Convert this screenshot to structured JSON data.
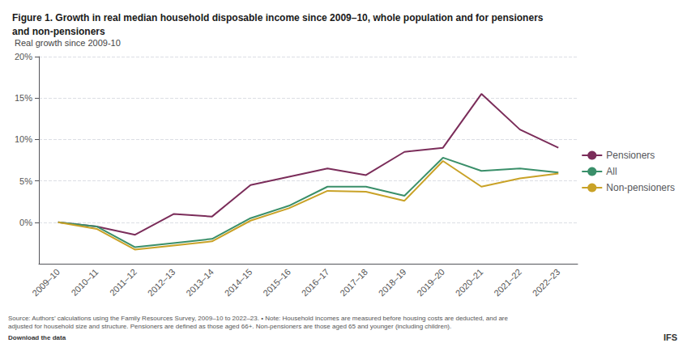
{
  "chart_data": {
    "type": "line",
    "title": "Figure 1. Growth in real median household disposable income since 2009–10, whole population and for pensioners\nand non-pensioners",
    "ylabel": "Real growth since 2009-10",
    "categories": [
      "2009–10",
      "2010–11",
      "2011–12",
      "2012–13",
      "2013–14",
      "2014–15",
      "2015–16",
      "2016–17",
      "2017–18",
      "2018–19",
      "2019–20",
      "2020–21",
      "2021–22",
      "2022–23"
    ],
    "series": [
      {
        "name": "Pensioners",
        "color": "#7b2d5a",
        "values": [
          0.0,
          -0.5,
          -1.5,
          1.0,
          0.7,
          4.5,
          5.5,
          6.5,
          5.7,
          8.5,
          9.0,
          15.5,
          11.2,
          9.0
        ]
      },
      {
        "name": "All",
        "color": "#3a8f6a",
        "values": [
          0.0,
          -0.5,
          -3.0,
          -2.5,
          -2.0,
          0.5,
          2.0,
          4.3,
          4.3,
          3.2,
          7.8,
          6.2,
          6.5,
          6.0
        ]
      },
      {
        "name": "Non-pensioners",
        "color": "#c9a227",
        "values": [
          0.0,
          -0.8,
          -3.3,
          -2.8,
          -2.3,
          0.2,
          1.7,
          3.8,
          3.7,
          2.6,
          7.4,
          4.3,
          5.3,
          5.9
        ]
      }
    ],
    "ylim": [
      -5,
      20
    ],
    "yticks": [
      {
        "value": 0,
        "label": "0%"
      },
      {
        "value": 5,
        "label": "5%"
      },
      {
        "value": 10,
        "label": "10%"
      },
      {
        "value": 15,
        "label": "15%"
      },
      {
        "value": 20,
        "label": "20%"
      }
    ],
    "grid": true,
    "legend": "right",
    "annotations": [
      "Source: Authors’ calculations using the Family Resources Survey, 2009–10 to 2022–23. • Note: Household incomes are measured before housing costs are deducted, and are",
      "adjusted for household size and structure. Pensioners are defined as those aged 66+. Non-pensioners are those aged 65 and younger (including children).",
      "Download the data",
      "IFS"
    ]
  }
}
